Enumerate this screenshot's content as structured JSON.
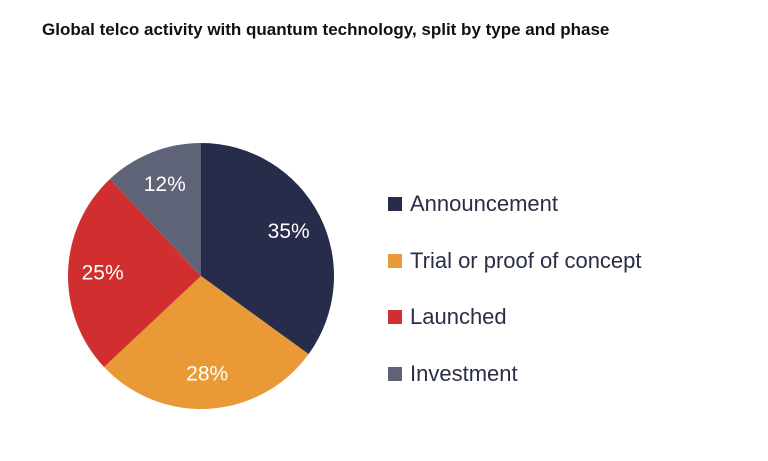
{
  "chart_data": {
    "type": "pie",
    "title": "Global telco activity with quantum technology, split by type and phase",
    "legend_position": "right",
    "slices": [
      {
        "name": "Announcement",
        "value": 35,
        "label": "35%",
        "color": "#272c4b"
      },
      {
        "name": "Trial or proof of concept",
        "value": 28,
        "label": "28%",
        "color": "#e99a37"
      },
      {
        "name": "Launched",
        "value": 25,
        "label": "25%",
        "color": "#d12f2f"
      },
      {
        "name": "Investment",
        "value": 12,
        "label": "12%",
        "color": "#5f6378"
      }
    ]
  }
}
